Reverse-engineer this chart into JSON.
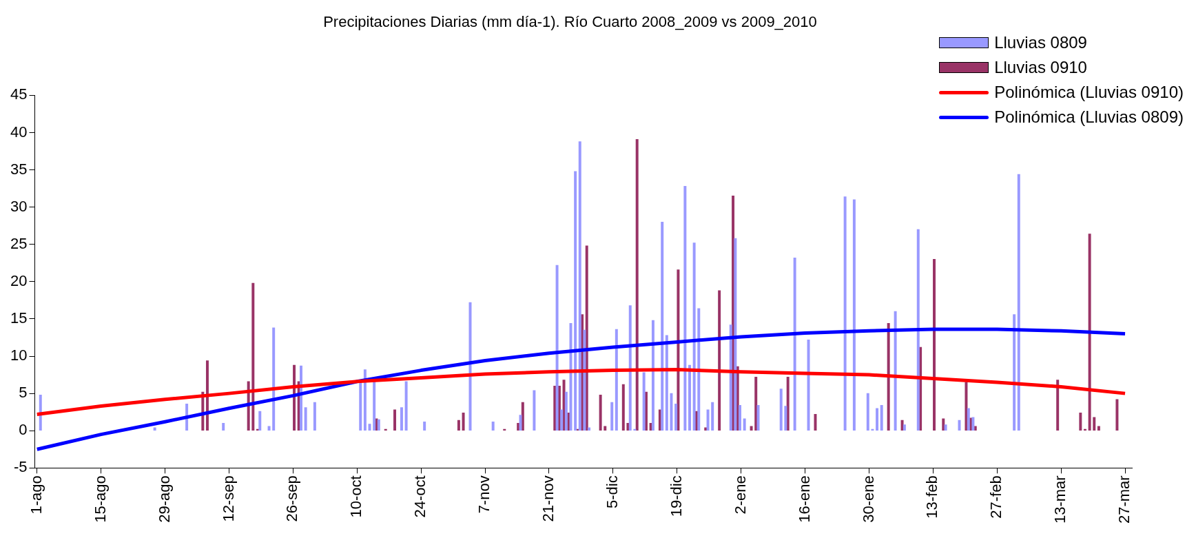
{
  "chart_data": {
    "type": "bar",
    "title": "Precipitaciones Diarias (mm día-1). Río Cuarto 2008_2009 vs 2009_2010",
    "categories": [
      "1-ago",
      null,
      null,
      null,
      null,
      null,
      null,
      null,
      null,
      null,
      null,
      null,
      null,
      null,
      "15-ago",
      null,
      null,
      null,
      null,
      null,
      null,
      null,
      null,
      null,
      null,
      null,
      null,
      null,
      "29-ago",
      null,
      null,
      null,
      null,
      null,
      null,
      null,
      null,
      null,
      null,
      null,
      null,
      null,
      "12-sep",
      null,
      null,
      null,
      null,
      null,
      null,
      null,
      null,
      null,
      null,
      null,
      null,
      null,
      "26-sep",
      null,
      null,
      null,
      null,
      null,
      null,
      null,
      null,
      null,
      null,
      null,
      null,
      null,
      "10-oct",
      null,
      null,
      null,
      null,
      null,
      null,
      null,
      null,
      null,
      null,
      null,
      null,
      null,
      "24-oct",
      null,
      null,
      null,
      null,
      null,
      null,
      null,
      null,
      null,
      null,
      null,
      null,
      null,
      "7-nov",
      null,
      null,
      null,
      null,
      null,
      null,
      null,
      null,
      null,
      null,
      null,
      null,
      null,
      "21-nov",
      null,
      null,
      null,
      null,
      null,
      null,
      null,
      null,
      null,
      null,
      null,
      null,
      null,
      "5-dic",
      null,
      null,
      null,
      null,
      null,
      null,
      null,
      null,
      null,
      null,
      null,
      null,
      null,
      "19-dic",
      null,
      null,
      null,
      null,
      null,
      null,
      null,
      null,
      null,
      null,
      null,
      null,
      null,
      "2-ene",
      null,
      null,
      null,
      null,
      null,
      null,
      null,
      null,
      null,
      null,
      null,
      null,
      null,
      "16-ene",
      null,
      null,
      null,
      null,
      null,
      null,
      null,
      null,
      null,
      null,
      null,
      null,
      null,
      "30-ene",
      null,
      null,
      null,
      null,
      null,
      null,
      null,
      null,
      null,
      null,
      null,
      null,
      null,
      "13-feb",
      null,
      null,
      null,
      null,
      null,
      null,
      null,
      null,
      null,
      null,
      null,
      null,
      null,
      "27-feb",
      null,
      null,
      null,
      null,
      null,
      null,
      null,
      null,
      null,
      null,
      null,
      null,
      null,
      "13-mar",
      null,
      null,
      null,
      null,
      null,
      null,
      null,
      null,
      null,
      null,
      null,
      null,
      null,
      "27-mar",
      null
    ],
    "series": [
      {
        "name": "Lluvias 0809",
        "color": "#9999ff",
        "values": [
          null,
          4.8,
          null,
          null,
          null,
          null,
          null,
          null,
          null,
          null,
          null,
          null,
          null,
          null,
          null,
          null,
          null,
          null,
          null,
          null,
          null,
          null,
          null,
          null,
          null,
          null,
          0.4,
          null,
          null,
          null,
          null,
          null,
          null,
          3.6,
          null,
          null,
          null,
          null,
          null,
          null,
          null,
          1.0,
          null,
          null,
          null,
          null,
          null,
          null,
          null,
          2.6,
          null,
          0.6,
          13.8,
          null,
          null,
          null,
          null,
          null,
          8.7,
          3.1,
          null,
          3.8,
          null,
          null,
          null,
          null,
          null,
          null,
          null,
          null,
          null,
          6.5,
          8.2,
          0.9,
          6.6,
          1.5,
          null,
          null,
          null,
          null,
          3.1,
          6.6,
          null,
          null,
          null,
          1.2,
          null,
          null,
          null,
          null,
          null,
          null,
          null,
          null,
          null,
          17.2,
          null,
          null,
          null,
          null,
          1.2,
          null,
          null,
          null,
          null,
          null,
          2.1,
          null,
          null,
          5.4,
          null,
          null,
          null,
          null,
          22.2,
          2.8,
          5.2,
          14.4,
          34.8,
          38.8,
          13.5,
          0.4,
          null,
          null,
          null,
          null,
          3.8,
          13.6,
          null,
          null,
          16.8,
          0.2,
          null,
          7.8,
          null,
          14.8,
          null,
          28.0,
          12.8,
          5.0,
          3.6,
          null,
          32.8,
          8.8,
          25.2,
          16.4,
          null,
          2.8,
          3.8,
          null,
          null,
          null,
          14.2,
          25.8,
          3.4,
          1.6,
          null,
          null,
          3.4,
          null,
          null,
          null,
          null,
          5.6,
          3.3,
          null,
          23.2,
          null,
          null,
          12.2,
          null,
          null,
          null,
          null,
          null,
          null,
          null,
          31.4,
          null,
          31.0,
          null,
          null,
          5.0,
          0.2,
          3.0,
          3.4,
          null,
          null,
          16.0,
          null,
          0.8,
          null,
          null,
          27.0,
          null,
          null,
          null,
          null,
          null,
          0.8,
          null,
          null,
          1.4,
          null,
          3.0,
          1.8,
          null,
          null,
          null,
          null,
          null,
          null,
          null,
          null,
          15.6,
          34.4,
          null,
          null,
          null,
          null,
          null,
          null,
          null,
          null,
          null,
          null,
          null,
          null,
          null,
          null,
          null,
          null,
          null,
          null,
          null,
          null,
          null,
          null,
          null,
          null
        ]
      },
      {
        "name": "Lluvias 0910",
        "color": "#993366",
        "values": [
          null,
          null,
          null,
          null,
          null,
          null,
          null,
          null,
          null,
          null,
          null,
          null,
          null,
          null,
          null,
          null,
          null,
          null,
          null,
          null,
          null,
          null,
          null,
          null,
          null,
          null,
          null,
          null,
          null,
          null,
          null,
          null,
          null,
          null,
          null,
          null,
          5.2,
          9.4,
          null,
          null,
          null,
          null,
          null,
          null,
          null,
          null,
          6.6,
          19.8,
          0.2,
          null,
          null,
          null,
          null,
          null,
          null,
          null,
          8.8,
          6.6,
          null,
          null,
          null,
          null,
          null,
          null,
          null,
          null,
          null,
          null,
          null,
          null,
          null,
          null,
          null,
          null,
          1.6,
          null,
          0.2,
          null,
          2.8,
          null,
          null,
          null,
          null,
          null,
          null,
          null,
          null,
          null,
          null,
          null,
          null,
          null,
          1.4,
          2.4,
          null,
          null,
          null,
          null,
          null,
          null,
          null,
          null,
          0.2,
          null,
          null,
          1.0,
          3.8,
          null,
          null,
          null,
          null,
          null,
          null,
          6.0,
          6.0,
          6.8,
          2.4,
          null,
          0.2,
          15.6,
          24.8,
          null,
          null,
          4.8,
          0.6,
          null,
          null,
          null,
          6.2,
          1.0,
          null,
          39.1,
          null,
          5.2,
          1.0,
          null,
          2.8,
          null,
          null,
          null,
          21.6,
          null,
          null,
          null,
          2.6,
          null,
          0.4,
          null,
          null,
          18.8,
          null,
          null,
          31.5,
          8.6,
          null,
          null,
          0.6,
          7.2,
          null,
          null,
          null,
          null,
          null,
          null,
          7.2,
          null,
          null,
          null,
          null,
          null,
          2.2,
          null,
          null,
          null,
          null,
          null,
          null,
          null,
          null,
          null,
          null,
          null,
          null,
          null,
          null,
          null,
          14.4,
          null,
          null,
          1.4,
          null,
          null,
          null,
          11.2,
          null,
          null,
          23.0,
          null,
          1.6,
          null,
          null,
          null,
          null,
          6.5,
          1.7,
          0.6,
          null,
          null,
          null,
          null,
          null,
          null,
          null,
          null,
          null,
          null,
          null,
          null,
          null,
          null,
          null,
          null,
          null,
          6.8,
          null,
          null,
          null,
          null,
          2.4,
          0.2,
          26.4,
          1.8,
          0.6,
          null,
          null,
          null,
          4.2,
          null,
          null,
          null
        ]
      },
      {
        "name": "Polinómica (Lluvias 0910)",
        "type": "line",
        "color": "#ff0000",
        "values": [
          2.2,
          null,
          null,
          null,
          null,
          null,
          null,
          null,
          null,
          null,
          null,
          null,
          null,
          null,
          3.3,
          null,
          null,
          null,
          null,
          null,
          null,
          null,
          null,
          null,
          null,
          null,
          null,
          null,
          4.2,
          null,
          null,
          null,
          null,
          null,
          null,
          null,
          null,
          null,
          null,
          null,
          null,
          null,
          5.0,
          null,
          null,
          null,
          null,
          null,
          null,
          null,
          null,
          null,
          null,
          null,
          null,
          null,
          5.9,
          null,
          null,
          null,
          null,
          null,
          null,
          null,
          null,
          null,
          null,
          null,
          null,
          null,
          6.6,
          null,
          null,
          null,
          null,
          null,
          null,
          null,
          null,
          null,
          null,
          null,
          null,
          null,
          7.1,
          null,
          null,
          null,
          null,
          null,
          null,
          null,
          null,
          null,
          null,
          null,
          null,
          null,
          7.6,
          null,
          null,
          null,
          null,
          null,
          null,
          null,
          null,
          null,
          null,
          null,
          null,
          null,
          7.9,
          null,
          null,
          null,
          null,
          null,
          null,
          null,
          null,
          null,
          null,
          null,
          null,
          null,
          8.1,
          null,
          null,
          null,
          null,
          null,
          null,
          null,
          null,
          null,
          null,
          null,
          null,
          null,
          8.2,
          null,
          null,
          null,
          null,
          null,
          null,
          null,
          null,
          null,
          null,
          null,
          null,
          null,
          7.9,
          null,
          null,
          null,
          null,
          null,
          null,
          null,
          null,
          null,
          null,
          null,
          null,
          null,
          7.7,
          null,
          null,
          null,
          null,
          null,
          null,
          null,
          null,
          null,
          null,
          null,
          null,
          null,
          7.5,
          null,
          null,
          null,
          null,
          null,
          null,
          null,
          null,
          null,
          null,
          null,
          null,
          null,
          7.0,
          null,
          null,
          null,
          null,
          null,
          null,
          null,
          null,
          null,
          null,
          null,
          null,
          null,
          6.5,
          null,
          null,
          null,
          null,
          null,
          null,
          null,
          null,
          null,
          null,
          null,
          null,
          null,
          5.9,
          null,
          null,
          null,
          null,
          null,
          null,
          null,
          null,
          null,
          null,
          null,
          null,
          null,
          5.0,
          null
        ]
      },
      {
        "name": "Polinómica (Lluvias 0809)",
        "type": "line",
        "color": "#0000ff",
        "values": [
          -2.5,
          null,
          null,
          null,
          null,
          null,
          null,
          null,
          null,
          null,
          null,
          null,
          null,
          null,
          -0.5,
          null,
          null,
          null,
          null,
          null,
          null,
          null,
          null,
          null,
          null,
          null,
          null,
          null,
          1.2,
          null,
          null,
          null,
          null,
          null,
          null,
          null,
          null,
          null,
          null,
          null,
          null,
          null,
          3.0,
          null,
          null,
          null,
          null,
          null,
          null,
          null,
          null,
          null,
          null,
          null,
          null,
          null,
          4.7,
          null,
          null,
          null,
          null,
          null,
          null,
          null,
          null,
          null,
          null,
          null,
          null,
          null,
          6.6,
          null,
          null,
          null,
          null,
          null,
          null,
          null,
          null,
          null,
          null,
          null,
          null,
          null,
          8.1,
          null,
          null,
          null,
          null,
          null,
          null,
          null,
          null,
          null,
          null,
          null,
          null,
          null,
          9.4,
          null,
          null,
          null,
          null,
          null,
          null,
          null,
          null,
          null,
          null,
          null,
          null,
          null,
          10.4,
          null,
          null,
          null,
          null,
          null,
          null,
          null,
          null,
          null,
          null,
          null,
          null,
          null,
          11.2,
          null,
          null,
          null,
          null,
          null,
          null,
          null,
          null,
          null,
          null,
          null,
          null,
          null,
          11.9,
          null,
          null,
          null,
          null,
          null,
          null,
          null,
          null,
          null,
          null,
          null,
          null,
          null,
          12.6,
          null,
          null,
          null,
          null,
          null,
          null,
          null,
          null,
          null,
          null,
          null,
          null,
          null,
          13.1,
          null,
          null,
          null,
          null,
          null,
          null,
          null,
          null,
          null,
          null,
          null,
          null,
          null,
          13.4,
          null,
          null,
          null,
          null,
          null,
          null,
          null,
          null,
          null,
          null,
          null,
          null,
          null,
          13.6,
          null,
          null,
          null,
          null,
          null,
          null,
          null,
          null,
          null,
          null,
          null,
          null,
          null,
          13.6,
          null,
          null,
          null,
          null,
          null,
          null,
          null,
          null,
          null,
          null,
          null,
          null,
          null,
          13.4,
          null,
          null,
          null,
          null,
          null,
          null,
          null,
          null,
          null,
          null,
          null,
          null,
          null,
          13.0,
          null
        ]
      }
    ],
    "ylim": [
      -5,
      45
    ],
    "yticks": [
      -5,
      0,
      5,
      10,
      15,
      20,
      25,
      30,
      35,
      40,
      45
    ],
    "legend": "top right",
    "marker": "none",
    "line_style": "solid"
  }
}
